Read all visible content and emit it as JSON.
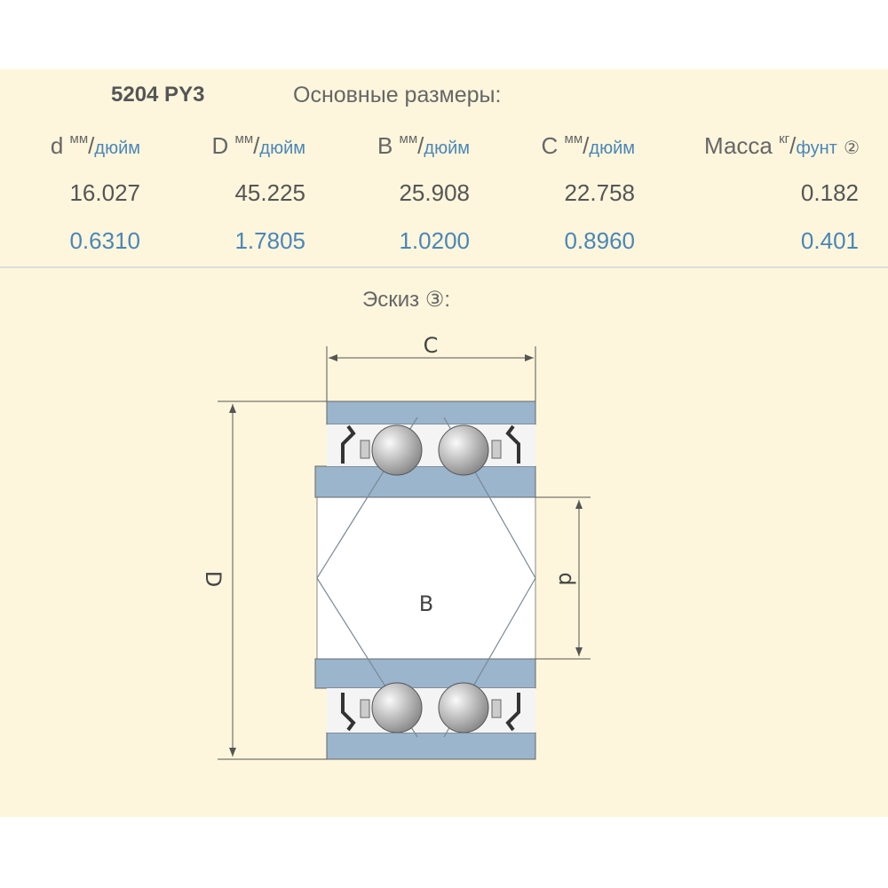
{
  "product": {
    "code": "5204 PY3",
    "title": "Основные размеры:"
  },
  "columns": [
    {
      "symbol": "d",
      "unit_top": "мм",
      "unit_bottom": "дюйм",
      "mm": "16.027",
      "inch": "0.6310"
    },
    {
      "symbol": "D",
      "unit_top": "мм",
      "unit_bottom": "дюйм",
      "mm": "45.225",
      "inch": "1.7805"
    },
    {
      "symbol": "B",
      "unit_top": "мм",
      "unit_bottom": "дюйм",
      "mm": "25.908",
      "inch": "1.0200"
    },
    {
      "symbol": "C",
      "unit_top": "мм",
      "unit_bottom": "дюйм",
      "mm": "22.758",
      "inch": "0.8960"
    },
    {
      "symbol": "Масса",
      "unit_top": "кг",
      "unit_bottom": "фунт",
      "note": "②",
      "mm": "0.182",
      "inch": "0.401"
    }
  ],
  "sketch": {
    "title": "Эскиз ③:",
    "labels": {
      "C": "C",
      "D": "D",
      "d": "d",
      "B": "B"
    }
  },
  "colors": {
    "background": "#fdf6dc",
    "ring": "#9ab5cc",
    "accent": "#4a86b8"
  }
}
